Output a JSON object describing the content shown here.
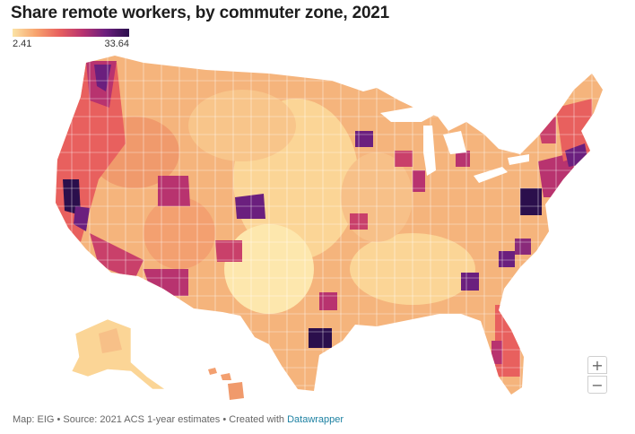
{
  "title": "Share remote workers, by commuter zone, 2021",
  "legend": {
    "min": "2.41",
    "max": "33.64"
  },
  "colors": {
    "scale": [
      "#fbe3a6",
      "#f7a36d",
      "#e8605e",
      "#b8336f",
      "#6b1f7e",
      "#2b0f4c"
    ],
    "link": "#1d81a2"
  },
  "zoom": {
    "in": "+",
    "out": "−"
  },
  "footer": {
    "text": "Map: EIG • Source: 2021 ACS 1-year estimates • Created with",
    "link": "Datawrapper"
  }
}
